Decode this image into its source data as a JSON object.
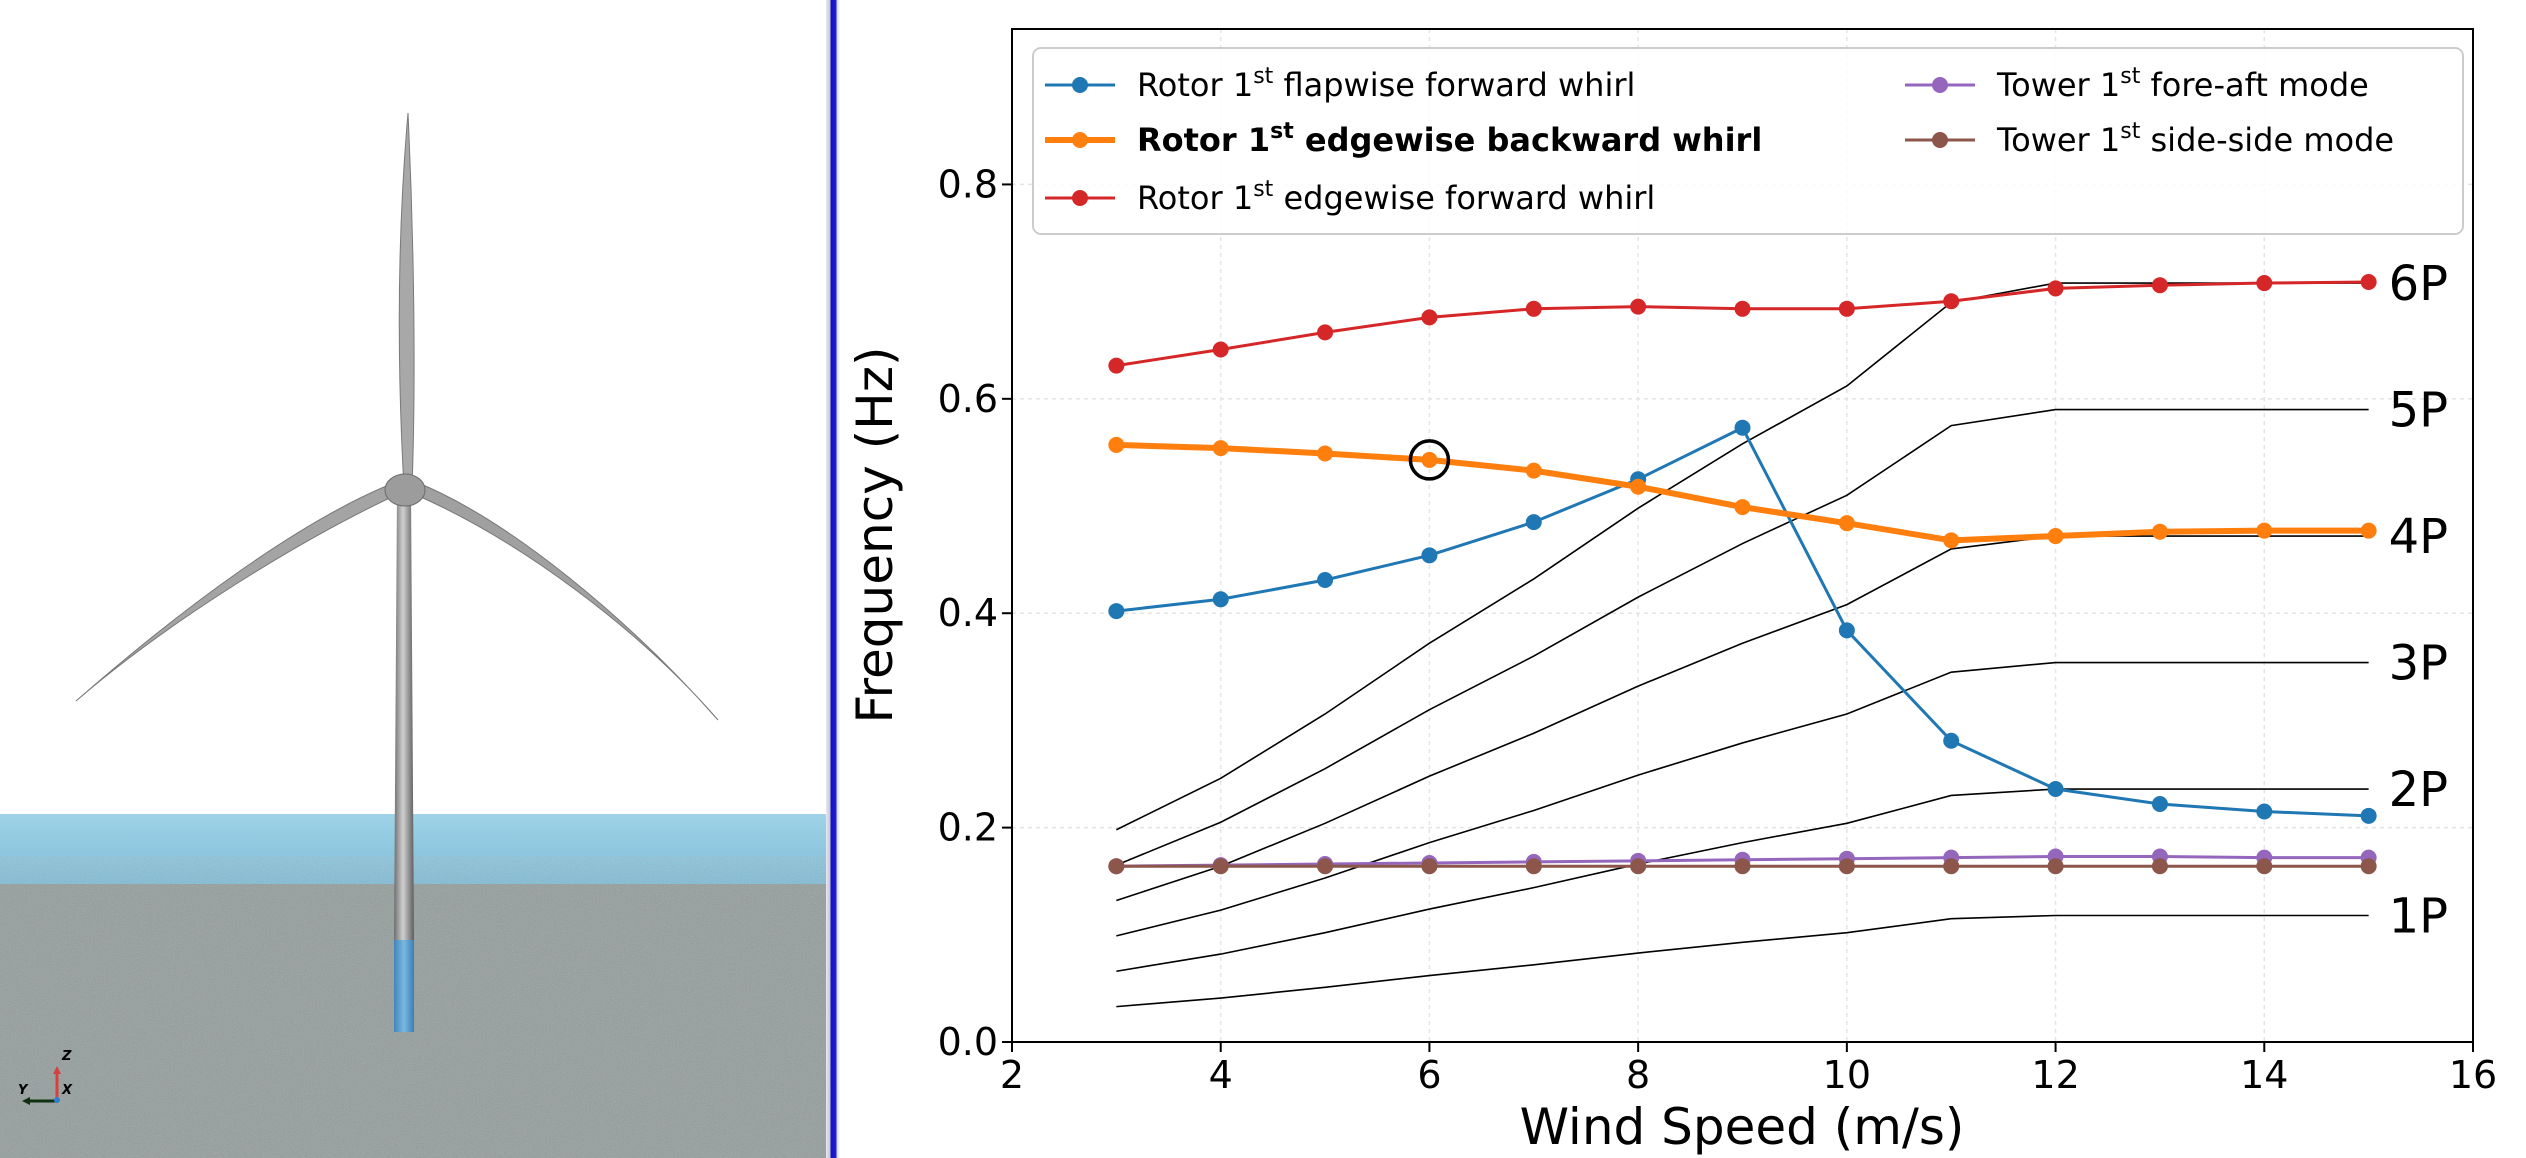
{
  "scene": {
    "axis_triad": {
      "z": "Z",
      "x": "X",
      "y": "Y"
    },
    "colors": {
      "sky": "#ffffff",
      "sea": "#8ec9df",
      "ground": "#8f9a98",
      "tower": "#9a9a9a",
      "monopile": "#5b9fd0"
    }
  },
  "chart_data": {
    "type": "line",
    "xlabel": "Wind Speed (m/s)",
    "ylabel": "Frequency (Hz)",
    "xlim": [
      2,
      16
    ],
    "ylim": [
      0,
      0.945
    ],
    "xticks": [
      "2",
      "4",
      "6",
      "8",
      "10",
      "12",
      "14",
      "16"
    ],
    "yticks": [
      "0.0",
      "0.2",
      "0.4",
      "0.6",
      "0.8"
    ],
    "grid": true,
    "legend_placement": "top",
    "x": [
      3,
      4,
      5,
      6,
      7,
      8,
      9,
      10,
      11,
      12,
      13,
      14,
      15
    ],
    "series": [
      {
        "name": "Rotor 1st flapwise forward whirl",
        "label_parts": [
          "Rotor 1",
          "st",
          " flapwise forward whirl"
        ],
        "color": "#1f77b4",
        "bold": false,
        "values": [
          0.402,
          0.413,
          0.431,
          0.454,
          0.485,
          0.525,
          0.573,
          0.384,
          0.281,
          0.236,
          0.222,
          0.215,
          0.211
        ]
      },
      {
        "name": "Rotor 1st edgewise backward whirl",
        "label_parts": [
          "Rotor 1",
          "st",
          " edgewise backward whirl"
        ],
        "color": "#ff7f0e",
        "bold": true,
        "values": [
          0.557,
          0.554,
          0.549,
          0.543,
          0.533,
          0.518,
          0.499,
          0.484,
          0.468,
          0.472,
          0.476,
          0.477,
          0.477
        ]
      },
      {
        "name": "Rotor 1st edgewise forward whirl",
        "label_parts": [
          "Rotor 1",
          "st",
          " edgewise forward whirl"
        ],
        "color": "#d62728",
        "bold": false,
        "values": [
          0.631,
          0.646,
          0.662,
          0.676,
          0.684,
          0.686,
          0.684,
          0.684,
          0.691,
          0.703,
          0.706,
          0.708,
          0.709
        ]
      },
      {
        "name": "Tower 1st fore-aft mode",
        "label_parts": [
          "Tower 1",
          "st",
          " fore-aft mode"
        ],
        "color": "#9467bd",
        "bold": false,
        "values": [
          0.164,
          0.165,
          0.166,
          0.167,
          0.168,
          0.169,
          0.17,
          0.171,
          0.172,
          0.173,
          0.173,
          0.172,
          0.172
        ]
      },
      {
        "name": "Tower 1st side-side mode",
        "label_parts": [
          "Tower 1",
          "st",
          " side-side mode"
        ],
        "color": "#8c564b",
        "bold": false,
        "values": [
          0.164,
          0.164,
          0.164,
          0.164,
          0.164,
          0.164,
          0.164,
          0.164,
          0.164,
          0.164,
          0.164,
          0.164,
          0.164
        ]
      }
    ],
    "rotor_harmonics": {
      "color": "#000000",
      "labels": [
        "1P",
        "2P",
        "3P",
        "4P",
        "5P",
        "6P"
      ],
      "multiples": [
        1,
        2,
        3,
        4,
        5,
        6
      ],
      "one_p_values": [
        0.033,
        0.041,
        0.051,
        0.062,
        0.072,
        0.083,
        0.093,
        0.102,
        0.115,
        0.118,
        0.118,
        0.118,
        0.118
      ]
    },
    "annotation": {
      "type": "circle",
      "x": 6,
      "y": 0.543,
      "color": "#000000"
    }
  }
}
